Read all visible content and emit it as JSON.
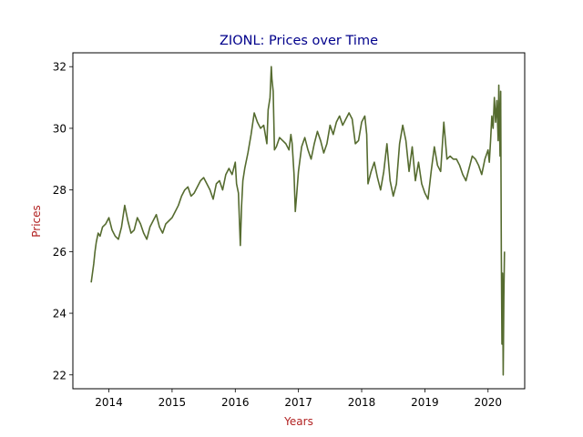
{
  "chart_data": {
    "type": "line",
    "title": "ZIONL: Prices over Time",
    "xlabel": "Years",
    "ylabel": "Prices",
    "x_ticks": [
      "2014",
      "2015",
      "2016",
      "2017",
      "2018",
      "2019",
      "2020"
    ],
    "y_ticks": [
      22,
      24,
      26,
      28,
      30,
      32
    ],
    "xlim": [
      2013.43,
      2020.58
    ],
    "ylim": [
      21.55,
      32.45
    ],
    "grid": false,
    "legend": "none",
    "colors": {
      "line": "#556b2f",
      "title": "#00008b",
      "axis_label": "#b22222"
    },
    "series": [
      {
        "x": [
          2013.72,
          2013.74,
          2013.76,
          2013.78,
          2013.8,
          2013.83,
          2013.86,
          2013.9,
          2013.95,
          2014.0,
          2014.05,
          2014.1,
          2014.15,
          2014.2,
          2014.25,
          2014.3,
          2014.35,
          2014.4,
          2014.45,
          2014.5,
          2014.55,
          2014.6,
          2014.65,
          2014.7,
          2014.75,
          2014.8,
          2014.85,
          2014.9,
          2014.95,
          2015.0,
          2015.05,
          2015.1,
          2015.15,
          2015.2,
          2015.25,
          2015.3,
          2015.35,
          2015.4,
          2015.45,
          2015.5,
          2015.55,
          2015.6,
          2015.65,
          2015.7,
          2015.75,
          2015.8,
          2015.85,
          2015.9,
          2015.95,
          2016.0,
          2016.02,
          2016.05,
          2016.08,
          2016.1,
          2016.12,
          2016.15,
          2016.2,
          2016.25,
          2016.3,
          2016.35,
          2016.4,
          2016.45,
          2016.5,
          2016.52,
          2016.55,
          2016.57,
          2016.58,
          2016.6,
          2016.62,
          2016.65,
          2016.7,
          2016.75,
          2016.8,
          2016.85,
          2016.88,
          2016.9,
          2016.93,
          2016.95,
          2016.97,
          2017.0,
          2017.05,
          2017.1,
          2017.15,
          2017.2,
          2017.25,
          2017.3,
          2017.35,
          2017.4,
          2017.45,
          2017.5,
          2017.55,
          2017.6,
          2017.65,
          2017.7,
          2017.75,
          2017.8,
          2017.85,
          2017.9,
          2017.95,
          2018.0,
          2018.05,
          2018.08,
          2018.1,
          2018.15,
          2018.2,
          2018.25,
          2018.3,
          2018.35,
          2018.4,
          2018.45,
          2018.5,
          2018.55,
          2018.6,
          2018.65,
          2018.7,
          2018.75,
          2018.8,
          2018.85,
          2018.9,
          2018.95,
          2019.0,
          2019.05,
          2019.1,
          2019.15,
          2019.2,
          2019.25,
          2019.3,
          2019.35,
          2019.4,
          2019.45,
          2019.5,
          2019.55,
          2019.6,
          2019.65,
          2019.7,
          2019.75,
          2019.8,
          2019.85,
          2019.9,
          2019.95,
          2020.0,
          2020.02,
          2020.04,
          2020.06,
          2020.08,
          2020.1,
          2020.12,
          2020.14,
          2020.16,
          2020.17,
          2020.18,
          2020.19,
          2020.2,
          2020.21,
          2020.22,
          2020.23,
          2020.24,
          2020.25,
          2020.26
        ],
        "values": [
          25.0,
          25.3,
          25.6,
          26.0,
          26.3,
          26.6,
          26.5,
          26.8,
          26.9,
          27.1,
          26.7,
          26.5,
          26.4,
          26.8,
          27.5,
          27.0,
          26.6,
          26.7,
          27.1,
          26.9,
          26.6,
          26.4,
          26.8,
          27.0,
          27.2,
          26.8,
          26.6,
          26.9,
          27.0,
          27.1,
          27.3,
          27.5,
          27.8,
          28.0,
          28.1,
          27.8,
          27.9,
          28.1,
          28.3,
          28.4,
          28.2,
          28.0,
          27.7,
          28.2,
          28.3,
          28.0,
          28.5,
          28.7,
          28.5,
          28.9,
          28.2,
          27.9,
          26.2,
          27.5,
          28.3,
          28.7,
          29.2,
          29.8,
          30.5,
          30.2,
          30.0,
          30.1,
          29.5,
          30.6,
          31.0,
          32.0,
          31.6,
          31.2,
          29.3,
          29.4,
          29.7,
          29.6,
          29.5,
          29.3,
          29.8,
          29.5,
          28.5,
          27.3,
          27.8,
          28.6,
          29.4,
          29.7,
          29.3,
          29.0,
          29.5,
          29.9,
          29.6,
          29.2,
          29.5,
          30.1,
          29.8,
          30.2,
          30.4,
          30.1,
          30.3,
          30.5,
          30.3,
          29.5,
          29.6,
          30.2,
          30.4,
          29.8,
          28.2,
          28.6,
          28.9,
          28.4,
          28.0,
          28.6,
          29.5,
          28.3,
          27.8,
          28.2,
          29.5,
          30.1,
          29.6,
          28.6,
          29.4,
          28.3,
          28.9,
          28.2,
          27.9,
          27.7,
          28.6,
          29.4,
          28.8,
          28.6,
          30.2,
          29.0,
          29.1,
          29.0,
          29.0,
          28.8,
          28.5,
          28.3,
          28.7,
          29.1,
          29.0,
          28.8,
          28.5,
          29.0,
          29.3,
          28.9,
          29.6,
          30.4,
          30.0,
          31.0,
          30.2,
          30.9,
          29.6,
          31.4,
          30.2,
          29.1,
          31.2,
          26.0,
          23.0,
          25.3,
          22.0,
          24.5,
          26.0
        ]
      }
    ]
  }
}
